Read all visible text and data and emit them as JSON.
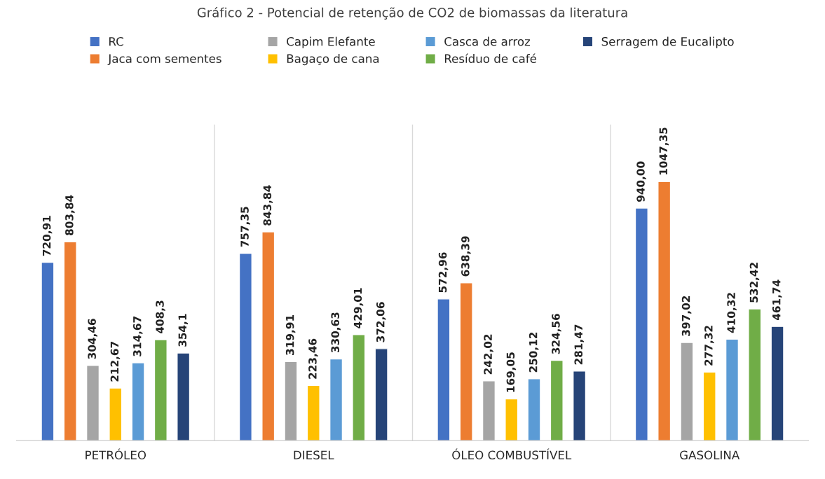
{
  "chart_data": {
    "type": "bar",
    "title": "Gráfico 2 - Potencial de retenção de CO2 de biomassas da literatura",
    "categories": [
      "PETRÓLEO",
      "DIESEL",
      "ÓLEO COMBUSTÍVEL",
      "GASOLINA"
    ],
    "series": [
      {
        "name": "RC",
        "color": "#4472c4",
        "values": [
          720.91,
          757.35,
          572.96,
          940.0
        ],
        "value_labels": [
          "720,91",
          "757,35",
          "572,96",
          "940,00"
        ]
      },
      {
        "name": "Jaca com sementes",
        "color": "#ed7d31",
        "values": [
          803.84,
          843.84,
          638.39,
          1047.35
        ],
        "value_labels": [
          "803,84",
          "843,84",
          "638,39",
          "1047,35"
        ]
      },
      {
        "name": "Capim Elefante",
        "color": "#a5a5a5",
        "values": [
          304.46,
          319.91,
          242.02,
          397.02
        ],
        "value_labels": [
          "304,46",
          "319,91",
          "242,02",
          "397,02"
        ]
      },
      {
        "name": "Bagaço de cana",
        "color": "#ffc000",
        "values": [
          212.67,
          223.46,
          169.05,
          277.32
        ],
        "value_labels": [
          "212,67",
          "223,46",
          "169,05",
          "277,32"
        ]
      },
      {
        "name": "Casca de arroz",
        "color": "#5b9bd5",
        "values": [
          314.67,
          330.63,
          250.12,
          410.32
        ],
        "value_labels": [
          "314,67",
          "330,63",
          "250,12",
          "410,32"
        ]
      },
      {
        "name": "Resíduo de café",
        "color": "#70ad47",
        "values": [
          408.3,
          429.01,
          324.56,
          532.42
        ],
        "value_labels": [
          "408,3",
          "429,01",
          "324,56",
          "532,42"
        ]
      },
      {
        "name": "Serragem de Eucalipto",
        "color": "#264478",
        "values": [
          354.1,
          372.06,
          281.47,
          461.74
        ],
        "value_labels": [
          "354,1",
          "372,06",
          "281,47",
          "461,74"
        ]
      }
    ],
    "legend": "top",
    "tick_labels": "x",
    "grid": false
  }
}
